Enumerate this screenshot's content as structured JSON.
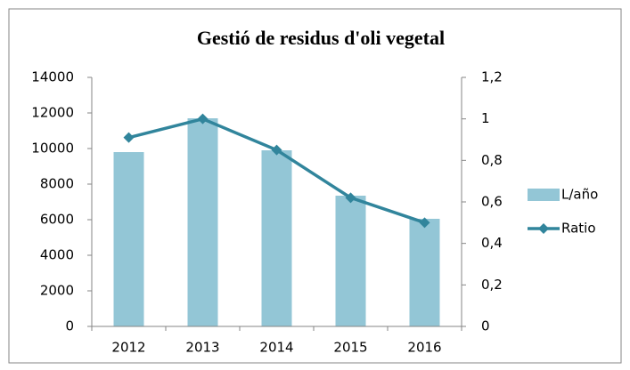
{
  "chart_data": {
    "type": "bar-line",
    "title": "Gestió de residus d'oli vegetal",
    "categories": [
      "2012",
      "2013",
      "2014",
      "2015",
      "2016"
    ],
    "series": [
      {
        "name": "L/año",
        "type": "bar",
        "color": "#93c6d6",
        "values": [
          9800,
          11700,
          9900,
          7350,
          6050
        ]
      },
      {
        "name": "Ratio",
        "type": "line",
        "axis": "y2",
        "color": "#31859c",
        "values": [
          0.91,
          1.0,
          0.85,
          0.62,
          0.5
        ]
      }
    ],
    "ylim": [
      0,
      14000
    ],
    "yticks": [
      0,
      2000,
      4000,
      6000,
      8000,
      10000,
      12000,
      14000
    ],
    "y2lim": [
      0,
      1.2
    ],
    "y2ticks": [
      0,
      {
        "value": 0.2,
        "label": "0,2"
      },
      {
        "value": 0.4,
        "label": "0,4"
      },
      {
        "value": 0.6,
        "label": "0,6"
      },
      {
        "value": 0.8,
        "label": "0,8"
      },
      1,
      {
        "value": 1.2,
        "label": "1,2"
      }
    ],
    "grid": false,
    "legend": "right"
  }
}
